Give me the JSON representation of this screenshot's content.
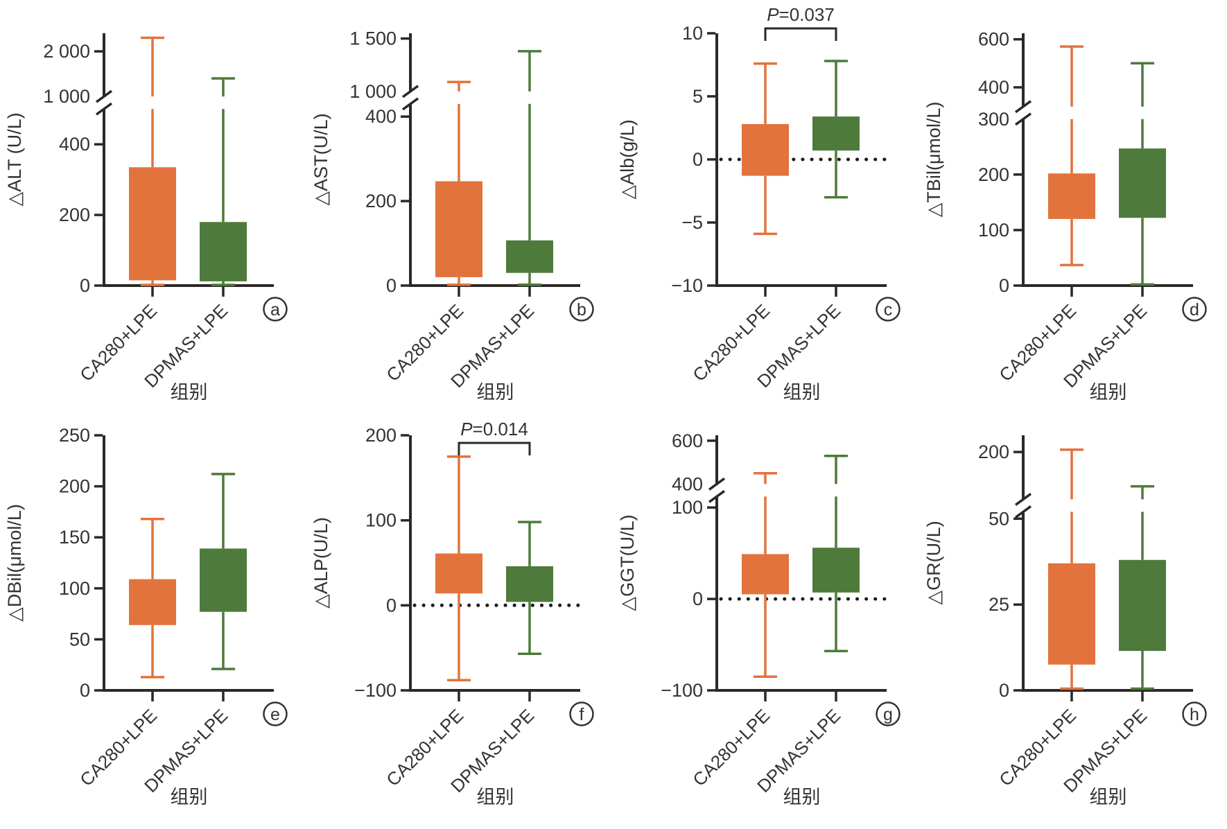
{
  "figure": {
    "description": "Box-and-whisker comparison of biochemical change (delta) after treatment in two groups",
    "groups": [
      "CA280+LPE",
      "DPMAS+LPE"
    ],
    "x_axis_title": "组别",
    "colors": {
      "group1": "#E2733C",
      "group2": "#4E7A3C",
      "axis": "#2B2826",
      "text": "#333333",
      "dotted_line": "#1A1A1A",
      "background": "#FFFFFF"
    }
  },
  "chart_data": [
    {
      "id": "a",
      "type": "box",
      "ylabel": "△ALT (U/L)",
      "xlabel": "组别",
      "categories": [
        "CA280+LPE",
        "DPMAS+LPE"
      ],
      "zero_line": false,
      "p_label": null,
      "axis": {
        "break": true,
        "lower": {
          "min": 0,
          "max": 500,
          "ticks": [
            0,
            200,
            400
          ],
          "frac": 0.7
        },
        "upper": {
          "min": 1000,
          "max": 2400,
          "ticks": [
            1000,
            2000
          ]
        }
      },
      "series": [
        {
          "name": "CA280+LPE",
          "color": "#E2733C",
          "whisker_low": 2,
          "q1": 15,
          "q3": 335,
          "whisker_high": 2300
        },
        {
          "name": "DPMAS+LPE",
          "color": "#4E7A3C",
          "whisker_low": 2,
          "q1": 12,
          "q3": 180,
          "whisker_high": 1400
        }
      ]
    },
    {
      "id": "b",
      "type": "box",
      "ylabel": "△AST(U/L)",
      "xlabel": "组别",
      "categories": [
        "CA280+LPE",
        "DPMAS+LPE"
      ],
      "zero_line": false,
      "p_label": null,
      "axis": {
        "break": true,
        "lower": {
          "min": 0,
          "max": 430,
          "ticks": [
            0,
            200,
            400
          ],
          "frac": 0.72
        },
        "upper": {
          "min": 1000,
          "max": 1550,
          "ticks": [
            1000,
            1500
          ]
        }
      },
      "series": [
        {
          "name": "CA280+LPE",
          "color": "#E2733C",
          "whisker_low": 2,
          "q1": 20,
          "q3": 247,
          "whisker_high": 1090
        },
        {
          "name": "DPMAS+LPE",
          "color": "#4E7A3C",
          "whisker_low": 2,
          "q1": 30,
          "q3": 107,
          "whisker_high": 1380
        }
      ]
    },
    {
      "id": "c",
      "type": "box",
      "ylabel": "△Alb(g/L)",
      "xlabel": "组别",
      "categories": [
        "CA280+LPE",
        "DPMAS+LPE"
      ],
      "zero_line": true,
      "p_label": "P=0.037",
      "axis": {
        "break": false,
        "min": -10,
        "max": 10,
        "ticks": [
          -10,
          -5,
          0,
          5,
          10
        ]
      },
      "series": [
        {
          "name": "CA280+LPE",
          "color": "#E2733C",
          "whisker_low": -5.9,
          "q1": -1.3,
          "q3": 2.8,
          "whisker_high": 7.6
        },
        {
          "name": "DPMAS+LPE",
          "color": "#4E7A3C",
          "whisker_low": -3.0,
          "q1": 0.7,
          "q3": 3.4,
          "whisker_high": 7.8
        }
      ]
    },
    {
      "id": "d",
      "type": "box",
      "ylabel": "△TBil(μmol/L)",
      "xlabel": "组别",
      "categories": [
        "CA280+LPE",
        "DPMAS+LPE"
      ],
      "zero_line": false,
      "p_label": null,
      "axis": {
        "break": true,
        "lower": {
          "min": 0,
          "max": 300,
          "ticks": [
            0,
            100,
            200,
            300
          ],
          "frac": 0.66
        },
        "upper": {
          "min": 320,
          "max": 625,
          "ticks": [
            400,
            600
          ]
        }
      },
      "series": [
        {
          "name": "CA280+LPE",
          "color": "#E2733C",
          "whisker_low": 37,
          "q1": 120,
          "q3": 202,
          "whisker_high": 570
        },
        {
          "name": "DPMAS+LPE",
          "color": "#4E7A3C",
          "whisker_low": 2,
          "q1": 122,
          "q3": 247,
          "whisker_high": 500
        }
      ]
    },
    {
      "id": "e",
      "type": "box",
      "ylabel": "△DBil(μmol/L)",
      "xlabel": "组别",
      "categories": [
        "CA280+LPE",
        "DPMAS+LPE"
      ],
      "zero_line": false,
      "p_label": null,
      "axis": {
        "break": false,
        "min": 0,
        "max": 250,
        "ticks": [
          0,
          50,
          100,
          150,
          200,
          250
        ]
      },
      "series": [
        {
          "name": "CA280+LPE",
          "color": "#E2733C",
          "whisker_low": 13,
          "q1": 64,
          "q3": 109,
          "whisker_high": 168
        },
        {
          "name": "DPMAS+LPE",
          "color": "#4E7A3C",
          "whisker_low": 21,
          "q1": 77,
          "q3": 139,
          "whisker_high": 212
        }
      ]
    },
    {
      "id": "f",
      "type": "box",
      "ylabel": "△ALP(U/L)",
      "xlabel": "组别",
      "categories": [
        "CA280+LPE",
        "DPMAS+LPE"
      ],
      "zero_line": true,
      "p_label": "P=0.014",
      "axis": {
        "break": false,
        "min": -100,
        "max": 200,
        "ticks": [
          -100,
          0,
          100,
          200
        ]
      },
      "series": [
        {
          "name": "CA280+LPE",
          "color": "#E2733C",
          "whisker_low": -88,
          "q1": 14,
          "q3": 61,
          "whisker_high": 175
        },
        {
          "name": "DPMAS+LPE",
          "color": "#4E7A3C",
          "whisker_low": -57,
          "q1": 4,
          "q3": 46,
          "whisker_high": 98
        }
      ]
    },
    {
      "id": "g",
      "type": "box",
      "ylabel": "△GGT(U/L)",
      "xlabel": "组别",
      "categories": [
        "CA280+LPE",
        "DPMAS+LPE"
      ],
      "zero_line": true,
      "p_label": null,
      "axis": {
        "break": true,
        "lower": {
          "min": -100,
          "max": 112,
          "ticks": [
            -100,
            0,
            100
          ],
          "frac": 0.76
        },
        "upper": {
          "min": 400,
          "max": 625,
          "ticks": [
            400,
            600
          ]
        }
      },
      "series": [
        {
          "name": "CA280+LPE",
          "color": "#E2733C",
          "whisker_low": -85,
          "q1": 5,
          "q3": 49,
          "whisker_high": 450
        },
        {
          "name": "DPMAS+LPE",
          "color": "#4E7A3C",
          "whisker_low": -57,
          "q1": 7,
          "q3": 56,
          "whisker_high": 530
        }
      ]
    },
    {
      "id": "h",
      "type": "box",
      "ylabel": "△GR(U/L)",
      "xlabel": "组别",
      "categories": [
        "CA280+LPE",
        "DPMAS+LPE"
      ],
      "zero_line": false,
      "p_label": null,
      "axis": {
        "break": true,
        "lower": {
          "min": 0,
          "max": 52,
          "ticks": [
            0,
            25,
            50
          ],
          "frac": 0.7
        },
        "upper": {
          "min": 58,
          "max": 250,
          "ticks": [
            200
          ]
        }
      },
      "series": [
        {
          "name": "CA280+LPE",
          "color": "#E2733C",
          "whisker_low": 0.5,
          "q1": 7.5,
          "q3": 37,
          "whisker_high": 207
        },
        {
          "name": "DPMAS+LPE",
          "color": "#4E7A3C",
          "whisker_low": 0.5,
          "q1": 11.5,
          "q3": 38,
          "whisker_high": 97
        }
      ]
    }
  ]
}
